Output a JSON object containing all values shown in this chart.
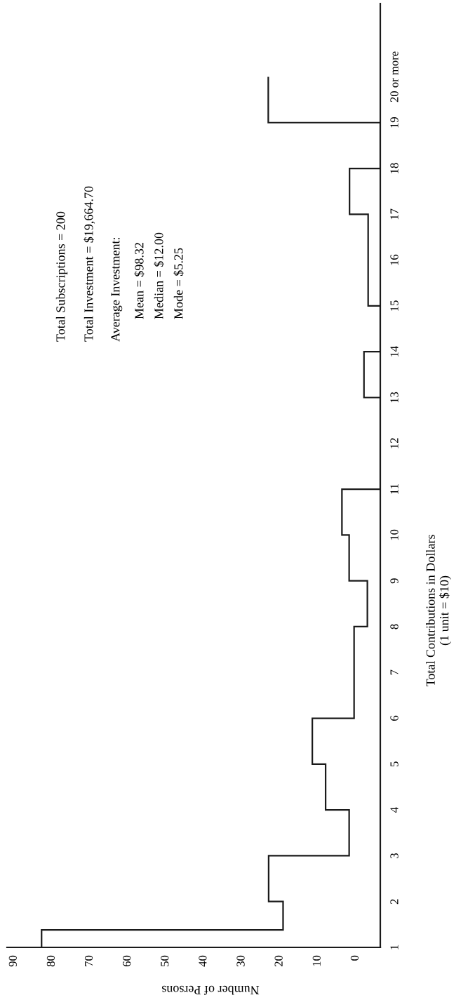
{
  "chart_data": {
    "type": "histogram",
    "orientation": "horizontal",
    "xlabel": "Number of Persons",
    "ylabel": "Total Contributions in Dollars\n(1 unit = $10)",
    "bins": [
      1,
      1.38,
      2,
      3,
      4,
      5,
      6,
      8,
      9,
      10,
      11,
      13,
      14,
      15,
      17,
      18,
      19,
      20
    ],
    "values": [
      82.7,
      19.1,
      22.9,
      1.7,
      7.9,
      11.4,
      0.4,
      -3.1,
      1.7,
      3.6,
      -6.5,
      -2.2,
      -6.5,
      -3.3,
      1.6,
      -6.5,
      23.0
    ],
    "color": "#1a1a1a",
    "xlim": [
      91.8,
      -6.5
    ],
    "xticks": [
      90,
      80,
      70,
      60,
      50,
      40,
      30,
      20,
      10,
      0
    ],
    "ylim": [
      1,
      21.6
    ],
    "yticks": [
      1,
      2,
      3,
      4,
      5,
      6,
      7,
      8,
      9,
      10,
      11,
      12,
      13,
      14,
      15,
      16,
      17,
      18,
      19,
      {
        "value": 20,
        "label": "20 or more"
      }
    ],
    "annotations": [
      "Total Subscriptions = 200",
      "Total Investment = $19,664.70",
      "Average Investment:",
      "Mean = $98.32",
      "Median = $12.00",
      "Mode = $5.25"
    ],
    "grid": false,
    "legend": false
  }
}
